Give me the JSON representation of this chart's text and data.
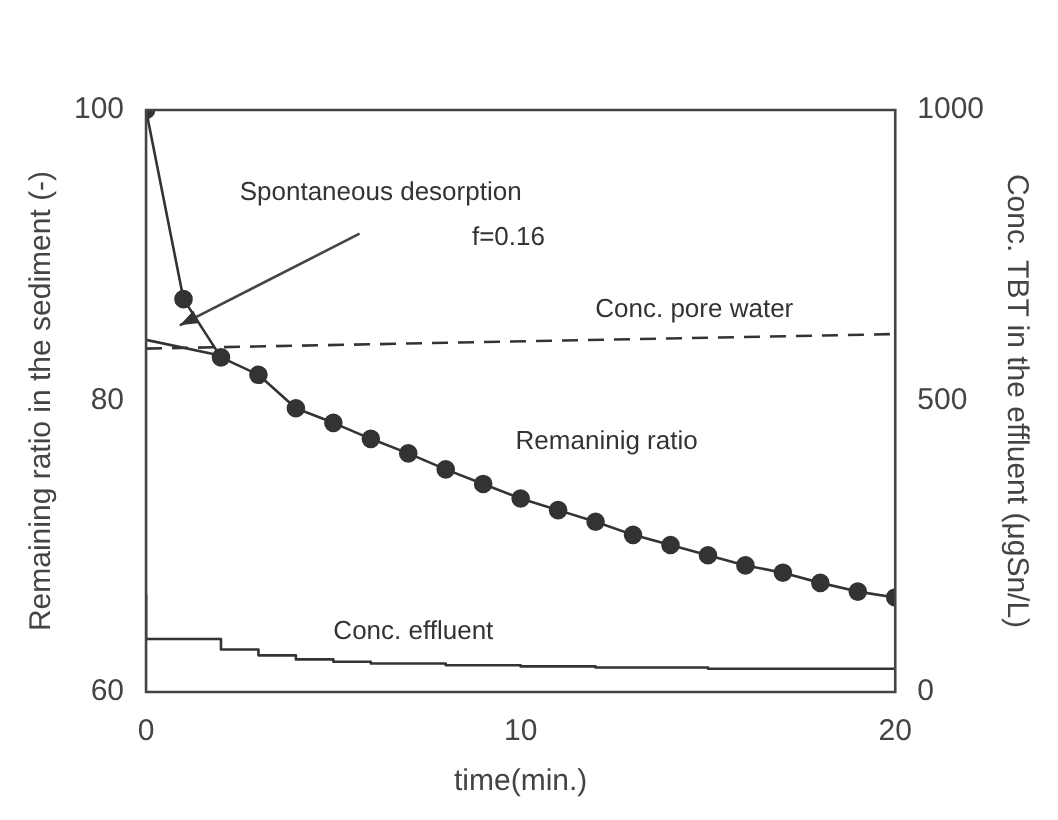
{
  "chart_data": {
    "type": "line",
    "xlabel": "time(min.)",
    "ylabel": "Remaining ratio in the sediment (-)",
    "y2label": "Conc. TBT in the effluent (μgSn/L)",
    "xlim": [
      0,
      20
    ],
    "xticks": [
      0,
      10,
      20
    ],
    "ylim": [
      60,
      100
    ],
    "yticks": [
      60,
      80,
      100
    ],
    "y2lim": [
      0,
      1000
    ],
    "y2ticks": [
      0,
      500,
      1000
    ],
    "grid": false,
    "legend": false,
    "annotations": [
      "Spontaneous desorption",
      "f=0.16"
    ],
    "series": [
      {
        "name": "Remaninig ratio",
        "type": "line",
        "color": "#333333",
        "marker": "circle",
        "x": [
          0,
          1,
          2,
          3,
          4,
          5,
          6,
          7,
          8,
          9,
          10,
          11,
          12,
          13,
          14,
          15,
          16,
          17,
          18,
          19,
          20
        ],
        "values": [
          100,
          87,
          83,
          81.8,
          79.5,
          78.5,
          77.4,
          76.4,
          75.3,
          74.3,
          73.3,
          72.5,
          71.7,
          70.8,
          70.1,
          69.4,
          68.7,
          68.2,
          67.5,
          66.9,
          66.5
        ]
      },
      {
        "type": "line",
        "color": "#333333",
        "marker": "none",
        "x": [
          0,
          2.2
        ],
        "values": [
          84.2,
          83
        ]
      },
      {
        "name": "Conc. pore water",
        "type": "line",
        "color": "#333333",
        "marker": "none",
        "line_style": "dashed",
        "axis": "y2",
        "x": [
          0,
          20
        ],
        "values": [
          590,
          615
        ]
      },
      {
        "name": "Conc. effluent",
        "type": "step",
        "color": "#333333",
        "marker": "none",
        "axis": "y2",
        "x": [
          0,
          2,
          3,
          4,
          5,
          6,
          8,
          10,
          12,
          15,
          20
        ],
        "values": [
          167,
          91,
          73,
          63,
          56,
          52,
          49,
          46,
          44,
          42,
          40
        ]
      }
    ]
  }
}
